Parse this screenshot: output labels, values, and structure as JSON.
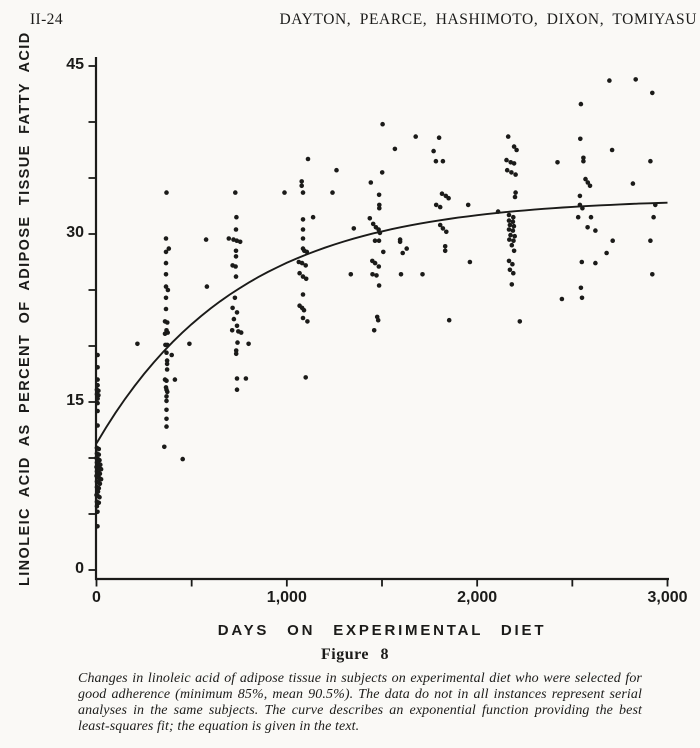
{
  "page": {
    "header_left": "II-24",
    "header_right": "DAYTON,  PEARCE,  HASHIMOTO,  DIXON,  TOMIYASU"
  },
  "figure": {
    "label": "Figure  8",
    "caption": "Changes in linoleic acid of adipose tissue in subjects on experimental diet who were selected for good adherence (minimum 85%, mean 90.5%). The data do not in all instances represent serial analyses in the same subjects. The curve describes an exponential function providing the best least-squares fit; the equation is given in the text."
  },
  "colors": {
    "ink": "#1b1b19",
    "paper": "#faf9f6"
  },
  "chart_data": {
    "type": "scatter",
    "title": "",
    "xlabel": "DAYS ON EXPERIMENTAL DIET",
    "ylabel": "LINOLEIC ACID AS PERCENT OF ADIPOSE TISSUE FATTY ACID",
    "xlim": [
      0,
      3000
    ],
    "ylim": [
      0,
      45
    ],
    "grid": false,
    "x_major_ticks": {
      "values": [
        0,
        1000,
        2000,
        3000
      ],
      "labels": [
        "0",
        "1,000",
        "2,000",
        "3,000"
      ]
    },
    "x_minor_ticks": [
      500,
      1500,
      2500
    ],
    "y_major_ticks": {
      "values": [
        0,
        15,
        30,
        45
      ],
      "labels": [
        "0",
        "15",
        "30",
        "45"
      ]
    },
    "y_minor_ticks": [
      5,
      10,
      20,
      25,
      35,
      40
    ],
    "curve": {
      "type": "exponential-fit",
      "description": "y = 33.2 - 21.9 * exp(-t/750)",
      "y_at_0": 11.3,
      "asymptote": 33.2,
      "tau_days": 750
    },
    "points": [
      [
        6,
        19.2
      ],
      [
        6,
        18.1
      ],
      [
        6,
        17.0
      ],
      [
        6,
        16.5
      ],
      [
        2,
        16.1
      ],
      [
        10,
        16.0
      ],
      [
        2,
        15.7
      ],
      [
        10,
        15.6
      ],
      [
        6,
        15.3
      ],
      [
        6,
        14.9
      ],
      [
        6,
        14.2
      ],
      [
        6,
        12.9
      ],
      [
        2,
        10.9
      ],
      [
        12,
        10.8
      ],
      [
        2,
        10.4
      ],
      [
        12,
        10.3
      ],
      [
        0,
        10.0
      ],
      [
        8,
        9.9
      ],
      [
        16,
        9.8
      ],
      [
        2,
        9.6
      ],
      [
        10,
        9.5
      ],
      [
        20,
        9.4
      ],
      [
        0,
        9.2
      ],
      [
        8,
        9.1
      ],
      [
        16,
        9.1
      ],
      [
        24,
        9.0
      ],
      [
        2,
        8.8
      ],
      [
        10,
        8.7
      ],
      [
        18,
        8.6
      ],
      [
        0,
        8.4
      ],
      [
        8,
        8.3
      ],
      [
        16,
        8.2
      ],
      [
        24,
        8.1
      ],
      [
        2,
        7.9
      ],
      [
        10,
        7.8
      ],
      [
        18,
        7.7
      ],
      [
        2,
        7.4
      ],
      [
        12,
        7.3
      ],
      [
        8,
        7.0
      ],
      [
        0,
        6.7
      ],
      [
        8,
        6.6
      ],
      [
        16,
        6.5
      ],
      [
        2,
        6.1
      ],
      [
        12,
        6.0
      ],
      [
        2,
        5.7
      ],
      [
        5,
        5.2
      ],
      [
        5,
        3.9
      ],
      [
        215,
        20.2
      ],
      [
        368,
        33.7
      ],
      [
        365,
        29.6
      ],
      [
        380,
        28.7
      ],
      [
        365,
        28.4
      ],
      [
        365,
        27.4
      ],
      [
        365,
        26.4
      ],
      [
        365,
        25.3
      ],
      [
        375,
        25.0
      ],
      [
        365,
        24.3
      ],
      [
        365,
        23.3
      ],
      [
        360,
        22.2
      ],
      [
        372,
        22.1
      ],
      [
        368,
        21.4
      ],
      [
        360,
        21.1
      ],
      [
        374,
        21.2
      ],
      [
        362,
        20.1
      ],
      [
        372,
        20.1
      ],
      [
        368,
        19.4
      ],
      [
        395,
        19.2
      ],
      [
        371,
        18.7
      ],
      [
        371,
        18.4
      ],
      [
        371,
        17.9
      ],
      [
        360,
        17.0
      ],
      [
        368,
        16.9
      ],
      [
        412,
        17.0
      ],
      [
        365,
        16.3
      ],
      [
        368,
        16.1
      ],
      [
        372,
        15.9
      ],
      [
        368,
        15.5
      ],
      [
        368,
        15.1
      ],
      [
        368,
        14.3
      ],
      [
        368,
        13.5
      ],
      [
        368,
        12.8
      ],
      [
        356,
        11.0
      ],
      [
        453,
        9.9
      ],
      [
        488,
        20.2
      ],
      [
        576,
        29.5
      ],
      [
        580,
        25.3
      ],
      [
        729,
        33.7
      ],
      [
        735,
        31.5
      ],
      [
        733,
        30.4
      ],
      [
        695,
        29.6
      ],
      [
        720,
        29.5
      ],
      [
        737,
        29.4
      ],
      [
        755,
        29.3
      ],
      [
        733,
        28.5
      ],
      [
        733,
        28.0
      ],
      [
        715,
        27.2
      ],
      [
        731,
        27.1
      ],
      [
        733,
        26.2
      ],
      [
        727,
        24.3
      ],
      [
        715,
        23.4
      ],
      [
        738,
        23.0
      ],
      [
        722,
        22.4
      ],
      [
        738,
        21.8
      ],
      [
        713,
        21.4
      ],
      [
        745,
        21.3
      ],
      [
        760,
        21.2
      ],
      [
        741,
        20.3
      ],
      [
        799,
        20.2
      ],
      [
        734,
        19.6
      ],
      [
        734,
        19.3
      ],
      [
        738,
        17.1
      ],
      [
        785,
        17.1
      ],
      [
        738,
        16.1
      ],
      [
        988,
        33.7
      ],
      [
        1111,
        36.7
      ],
      [
        1078,
        34.7
      ],
      [
        1078,
        34.3
      ],
      [
        1085,
        33.7
      ],
      [
        1138,
        31.5
      ],
      [
        1085,
        31.3
      ],
      [
        1085,
        30.4
      ],
      [
        1085,
        29.6
      ],
      [
        1085,
        28.7
      ],
      [
        1092,
        28.5
      ],
      [
        1105,
        28.4
      ],
      [
        1063,
        27.5
      ],
      [
        1080,
        27.4
      ],
      [
        1099,
        27.2
      ],
      [
        1067,
        26.5
      ],
      [
        1085,
        26.2
      ],
      [
        1102,
        26.0
      ],
      [
        1085,
        24.6
      ],
      [
        1067,
        23.6
      ],
      [
        1080,
        23.4
      ],
      [
        1090,
        23.2
      ],
      [
        1085,
        22.5
      ],
      [
        1108,
        22.2
      ],
      [
        1099,
        17.2
      ],
      [
        1261,
        35.7
      ],
      [
        1240,
        33.7
      ],
      [
        1352,
        30.5
      ],
      [
        1336,
        26.4
      ],
      [
        1503,
        39.8
      ],
      [
        1568,
        37.6
      ],
      [
        1501,
        35.5
      ],
      [
        1441,
        34.6
      ],
      [
        1485,
        33.5
      ],
      [
        1486,
        32.6
      ],
      [
        1486,
        32.3
      ],
      [
        1436,
        31.4
      ],
      [
        1454,
        30.9
      ],
      [
        1468,
        30.6
      ],
      [
        1482,
        30.4
      ],
      [
        1489,
        30.1
      ],
      [
        1463,
        29.4
      ],
      [
        1484,
        29.4
      ],
      [
        1507,
        28.4
      ],
      [
        1449,
        27.6
      ],
      [
        1464,
        27.4
      ],
      [
        1483,
        27.1
      ],
      [
        1450,
        26.4
      ],
      [
        1471,
        26.3
      ],
      [
        1485,
        25.4
      ],
      [
        1475,
        22.6
      ],
      [
        1480,
        22.3
      ],
      [
        1459,
        21.4
      ],
      [
        1677,
        38.7
      ],
      [
        1595,
        29.5
      ],
      [
        1595,
        29.3
      ],
      [
        1630,
        28.7
      ],
      [
        1609,
        28.3
      ],
      [
        1600,
        26.4
      ],
      [
        1713,
        26.4
      ],
      [
        1800,
        38.6
      ],
      [
        1771,
        37.4
      ],
      [
        1783,
        36.5
      ],
      [
        1820,
        36.5
      ],
      [
        1815,
        33.6
      ],
      [
        1835,
        33.4
      ],
      [
        1850,
        33.2
      ],
      [
        1785,
        32.6
      ],
      [
        1806,
        32.4
      ],
      [
        1806,
        30.8
      ],
      [
        1820,
        30.5
      ],
      [
        1838,
        30.2
      ],
      [
        1832,
        28.9
      ],
      [
        1832,
        28.5
      ],
      [
        1853,
        22.3
      ],
      [
        1953,
        32.6
      ],
      [
        1962,
        27.5
      ],
      [
        2110,
        32.0
      ],
      [
        2163,
        38.7
      ],
      [
        2194,
        37.8
      ],
      [
        2207,
        37.5
      ],
      [
        2154,
        36.6
      ],
      [
        2176,
        36.4
      ],
      [
        2194,
        36.3
      ],
      [
        2158,
        35.7
      ],
      [
        2180,
        35.5
      ],
      [
        2202,
        35.3
      ],
      [
        2202,
        33.7
      ],
      [
        2199,
        33.3
      ],
      [
        2167,
        31.7
      ],
      [
        2190,
        31.5
      ],
      [
        2167,
        31.2
      ],
      [
        2188,
        31.1
      ],
      [
        2172,
        30.8
      ],
      [
        2193,
        30.7
      ],
      [
        2167,
        30.4
      ],
      [
        2188,
        30.3
      ],
      [
        2175,
        29.9
      ],
      [
        2197,
        29.8
      ],
      [
        2169,
        29.5
      ],
      [
        2191,
        29.4
      ],
      [
        2182,
        29.0
      ],
      [
        2194,
        28.5
      ],
      [
        2167,
        27.6
      ],
      [
        2185,
        27.3
      ],
      [
        2172,
        26.8
      ],
      [
        2190,
        26.5
      ],
      [
        2182,
        25.5
      ],
      [
        2224,
        22.2
      ],
      [
        2422,
        36.4
      ],
      [
        2445,
        24.2
      ],
      [
        2545,
        41.6
      ],
      [
        2542,
        38.5
      ],
      [
        2558,
        36.8
      ],
      [
        2558,
        36.5
      ],
      [
        2569,
        34.9
      ],
      [
        2581,
        34.6
      ],
      [
        2593,
        34.3
      ],
      [
        2540,
        33.4
      ],
      [
        2540,
        32.6
      ],
      [
        2553,
        32.3
      ],
      [
        2531,
        31.5
      ],
      [
        2598,
        31.5
      ],
      [
        2580,
        30.6
      ],
      [
        2621,
        30.3
      ],
      [
        2550,
        27.5
      ],
      [
        2621,
        27.4
      ],
      [
        2545,
        25.2
      ],
      [
        2551,
        24.3
      ],
      [
        2695,
        43.7
      ],
      [
        2709,
        37.5
      ],
      [
        2712,
        29.4
      ],
      [
        2680,
        28.3
      ],
      [
        2833,
        43.8
      ],
      [
        2920,
        42.6
      ],
      [
        2910,
        36.5
      ],
      [
        2818,
        34.5
      ],
      [
        2936,
        32.6
      ],
      [
        2927,
        31.5
      ],
      [
        2910,
        29.4
      ],
      [
        2920,
        26.4
      ]
    ]
  }
}
